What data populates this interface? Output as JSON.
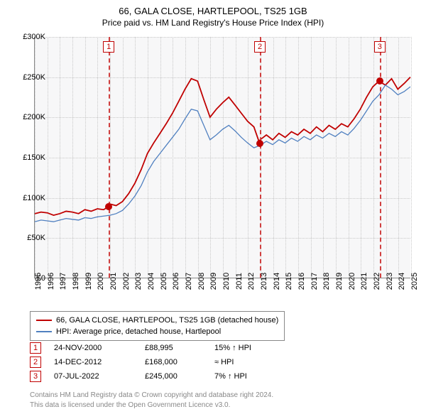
{
  "title": "66, GALA CLOSE, HARTLEPOOL, TS25 1GB",
  "subtitle": "Price paid vs. HM Land Registry's House Price Index (HPI)",
  "chart": {
    "type": "line",
    "background_color": "#f7f7f8",
    "grid_color": "#c8c8c8",
    "axis_color": "#888888",
    "ylim": [
      0,
      300000
    ],
    "yticks": [
      0,
      50000,
      100000,
      150000,
      200000,
      250000,
      300000
    ],
    "ytick_labels": [
      "£0",
      "£50K",
      "£100K",
      "£150K",
      "£200K",
      "£250K",
      "£300K"
    ],
    "xlim": [
      1995,
      2025
    ],
    "xticks": [
      1995,
      1996,
      1997,
      1998,
      1999,
      2000,
      2001,
      2002,
      2003,
      2004,
      2005,
      2006,
      2007,
      2008,
      2009,
      2010,
      2011,
      2012,
      2013,
      2014,
      2015,
      2016,
      2017,
      2018,
      2019,
      2020,
      2021,
      2022,
      2023,
      2024,
      2025
    ],
    "tick_fontsize": 11,
    "series": [
      {
        "name": "66, GALA CLOSE, HARTLEPOOL, TS25 1GB (detached house)",
        "color": "#c00000",
        "width": 1.8,
        "points": [
          [
            1995.0,
            80000
          ],
          [
            1995.5,
            82000
          ],
          [
            1996.0,
            81000
          ],
          [
            1996.5,
            78000
          ],
          [
            1997.0,
            80000
          ],
          [
            1997.5,
            83000
          ],
          [
            1998.0,
            82000
          ],
          [
            1998.5,
            80000
          ],
          [
            1999.0,
            85000
          ],
          [
            1999.5,
            83000
          ],
          [
            2000.0,
            86000
          ],
          [
            2000.5,
            85000
          ],
          [
            2000.9,
            88995
          ],
          [
            2001.0,
            92000
          ],
          [
            2001.5,
            90000
          ],
          [
            2002.0,
            95000
          ],
          [
            2002.5,
            105000
          ],
          [
            2003.0,
            118000
          ],
          [
            2003.5,
            135000
          ],
          [
            2004.0,
            155000
          ],
          [
            2004.5,
            168000
          ],
          [
            2005.0,
            180000
          ],
          [
            2005.5,
            192000
          ],
          [
            2006.0,
            205000
          ],
          [
            2006.5,
            220000
          ],
          [
            2007.0,
            235000
          ],
          [
            2007.5,
            248000
          ],
          [
            2008.0,
            245000
          ],
          [
            2008.5,
            222000
          ],
          [
            2009.0,
            200000
          ],
          [
            2009.5,
            210000
          ],
          [
            2010.0,
            218000
          ],
          [
            2010.5,
            225000
          ],
          [
            2011.0,
            215000
          ],
          [
            2011.5,
            205000
          ],
          [
            2012.0,
            195000
          ],
          [
            2012.5,
            188000
          ],
          [
            2012.95,
            168000
          ],
          [
            2013.0,
            172000
          ],
          [
            2013.5,
            178000
          ],
          [
            2014.0,
            172000
          ],
          [
            2014.5,
            180000
          ],
          [
            2015.0,
            175000
          ],
          [
            2015.5,
            182000
          ],
          [
            2016.0,
            178000
          ],
          [
            2016.5,
            185000
          ],
          [
            2017.0,
            180000
          ],
          [
            2017.5,
            188000
          ],
          [
            2018.0,
            182000
          ],
          [
            2018.5,
            190000
          ],
          [
            2019.0,
            185000
          ],
          [
            2019.5,
            192000
          ],
          [
            2020.0,
            188000
          ],
          [
            2020.5,
            198000
          ],
          [
            2021.0,
            210000
          ],
          [
            2021.5,
            225000
          ],
          [
            2022.0,
            238000
          ],
          [
            2022.5,
            245000
          ],
          [
            2023.0,
            240000
          ],
          [
            2023.5,
            248000
          ],
          [
            2024.0,
            235000
          ],
          [
            2024.5,
            242000
          ],
          [
            2025.0,
            250000
          ]
        ]
      },
      {
        "name": "HPI: Average price, detached house, Hartlepool",
        "color": "#5080c0",
        "width": 1.3,
        "points": [
          [
            1995.0,
            70000
          ],
          [
            1995.5,
            72000
          ],
          [
            1996.0,
            71000
          ],
          [
            1996.5,
            70000
          ],
          [
            1997.0,
            72000
          ],
          [
            1997.5,
            74000
          ],
          [
            1998.0,
            73000
          ],
          [
            1998.5,
            72000
          ],
          [
            1999.0,
            75000
          ],
          [
            1999.5,
            74000
          ],
          [
            2000.0,
            76000
          ],
          [
            2000.5,
            77000
          ],
          [
            2001.0,
            78000
          ],
          [
            2001.5,
            80000
          ],
          [
            2002.0,
            84000
          ],
          [
            2002.5,
            92000
          ],
          [
            2003.0,
            102000
          ],
          [
            2003.5,
            115000
          ],
          [
            2004.0,
            132000
          ],
          [
            2004.5,
            145000
          ],
          [
            2005.0,
            155000
          ],
          [
            2005.5,
            165000
          ],
          [
            2006.0,
            175000
          ],
          [
            2006.5,
            185000
          ],
          [
            2007.0,
            198000
          ],
          [
            2007.5,
            210000
          ],
          [
            2008.0,
            208000
          ],
          [
            2008.5,
            190000
          ],
          [
            2009.0,
            172000
          ],
          [
            2009.5,
            178000
          ],
          [
            2010.0,
            185000
          ],
          [
            2010.5,
            190000
          ],
          [
            2011.0,
            183000
          ],
          [
            2011.5,
            175000
          ],
          [
            2012.0,
            168000
          ],
          [
            2012.5,
            162000
          ],
          [
            2013.0,
            165000
          ],
          [
            2013.5,
            170000
          ],
          [
            2014.0,
            166000
          ],
          [
            2014.5,
            172000
          ],
          [
            2015.0,
            168000
          ],
          [
            2015.5,
            174000
          ],
          [
            2016.0,
            170000
          ],
          [
            2016.5,
            176000
          ],
          [
            2017.0,
            172000
          ],
          [
            2017.5,
            178000
          ],
          [
            2018.0,
            174000
          ],
          [
            2018.5,
            180000
          ],
          [
            2019.0,
            176000
          ],
          [
            2019.5,
            182000
          ],
          [
            2020.0,
            178000
          ],
          [
            2020.5,
            186000
          ],
          [
            2021.0,
            196000
          ],
          [
            2021.5,
            208000
          ],
          [
            2022.0,
            220000
          ],
          [
            2022.5,
            228000
          ],
          [
            2023.0,
            240000
          ],
          [
            2023.5,
            235000
          ],
          [
            2024.0,
            228000
          ],
          [
            2024.5,
            232000
          ],
          [
            2025.0,
            238000
          ]
        ]
      }
    ],
    "markers": [
      {
        "num": "1",
        "x": 2000.9,
        "y": 88995
      },
      {
        "num": "2",
        "x": 2012.95,
        "y": 168000
      },
      {
        "num": "3",
        "x": 2022.5,
        "y": 245000
      }
    ]
  },
  "legend": {
    "items": [
      {
        "color": "#c00000",
        "label": "66, GALA CLOSE, HARTLEPOOL, TS25 1GB (detached house)"
      },
      {
        "color": "#5080c0",
        "label": "HPI: Average price, detached house, Hartlepool"
      }
    ]
  },
  "events": [
    {
      "num": "1",
      "date": "24-NOV-2000",
      "price": "£88,995",
      "pct": "15% ↑ HPI"
    },
    {
      "num": "2",
      "date": "14-DEC-2012",
      "price": "£168,000",
      "pct": "≈ HPI"
    },
    {
      "num": "3",
      "date": "07-JUL-2022",
      "price": "£245,000",
      "pct": "7% ↑ HPI"
    }
  ],
  "footer": {
    "line1": "Contains HM Land Registry data © Crown copyright and database right 2024.",
    "line2": "This data is licensed under the Open Government Licence v3.0."
  }
}
